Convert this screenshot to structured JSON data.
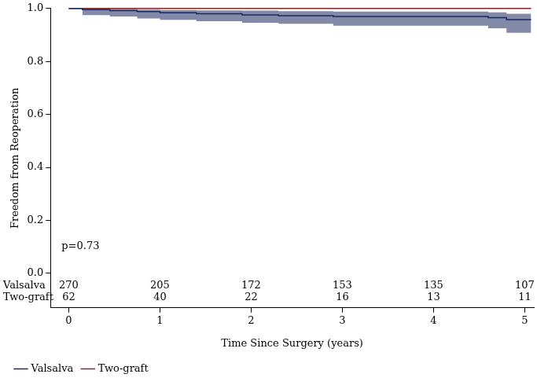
{
  "chart_data": {
    "type": "step",
    "x_label": "Time Since Surgery (years)",
    "y_label": "Freedom from Reoperation",
    "annotation": "p=0.73",
    "xlim": [
      -0.2,
      5.1
    ],
    "xticks": [
      0,
      1,
      2,
      3,
      4,
      5
    ],
    "ylim": [
      -0.13,
      1.0
    ],
    "yticks": [
      {
        "value": 0,
        "label": "0.0"
      },
      0.2,
      0.4,
      0.6,
      0.8,
      {
        "value": 1,
        "label": "1.0"
      }
    ],
    "grid": false,
    "legend": "bottom-left",
    "series": [
      {
        "name": "Valsalva",
        "color": "#1c2a5e",
        "x": [
          0,
          0.15,
          0.45,
          0.75,
          1.0,
          1.4,
          1.9,
          2.3,
          2.9,
          4.6,
          4.8,
          5.07
        ],
        "values": [
          1,
          0.996,
          0.992,
          0.988,
          0.984,
          0.98,
          0.976,
          0.973,
          0.97,
          0.965,
          0.958,
          0.958
        ],
        "lower": [
          1,
          0.975,
          0.97,
          0.962,
          0.957,
          0.952,
          0.946,
          0.942,
          0.935,
          0.925,
          0.908,
          0.908
        ],
        "upper": [
          1,
          1,
          0.998,
          0.996,
          0.994,
          0.993,
          0.992,
          0.99,
          0.988,
          0.985,
          0.98,
          0.98
        ]
      },
      {
        "name": "Two-graft",
        "color": "#8b2323",
        "x": [
          0,
          5.07
        ],
        "values": [
          1,
          1
        ]
      }
    ],
    "risk_table": {
      "times": [
        0,
        1,
        2,
        3,
        4,
        5
      ],
      "rows": [
        {
          "name": "Valsalva",
          "values": [
            270,
            205,
            172,
            153,
            135,
            107
          ]
        },
        {
          "name": "Two-graft",
          "values": [
            62,
            40,
            22,
            16,
            13,
            11
          ]
        }
      ]
    }
  }
}
